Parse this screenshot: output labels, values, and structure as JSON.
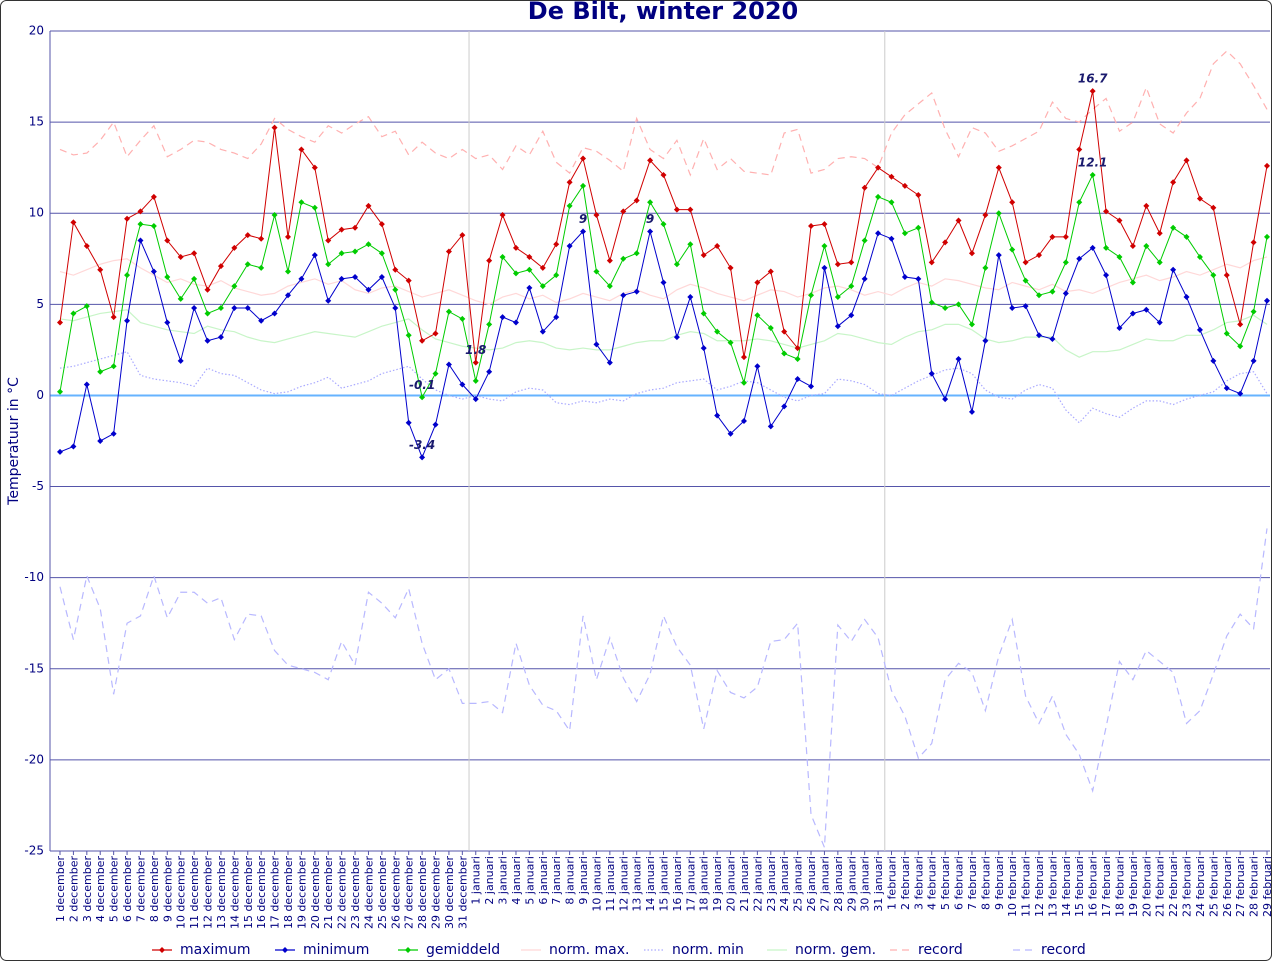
{
  "chart_data": {
    "type": "line",
    "title": "De Bilt, winter 2020",
    "y_label": "Temperatuur in °C",
    "categories": [
      "1 december",
      "2 december",
      "3 december",
      "4 december",
      "5 december",
      "6 december",
      "7 december",
      "8 december",
      "9 december",
      "10 december",
      "11 december",
      "12 december",
      "13 december",
      "14 december",
      "15 december",
      "16 december",
      "17 december",
      "18 december",
      "19 december",
      "20 december",
      "21 december",
      "22 december",
      "23 december",
      "24 december",
      "25 december",
      "26 december",
      "27 december",
      "28 december",
      "29 december",
      "30 december",
      "31 december",
      "1 januari",
      "2 januari",
      "3 januari",
      "4 januari",
      "5 januari",
      "6 januari",
      "7 januari",
      "8 januari",
      "9 januari",
      "10 januari",
      "11 januari",
      "12 januari",
      "13 januari",
      "14 januari",
      "15 januari",
      "16 januari",
      "17 januari",
      "18 januari",
      "19 januari",
      "20 januari",
      "21 januari",
      "22 januari",
      "23 januari",
      "24 januari",
      "25 januari",
      "26 januari",
      "27 januari",
      "28 januari",
      "29 januari",
      "30 januari",
      "31 januari",
      "1 februari",
      "2 februari",
      "3 februari",
      "4 februari",
      "5 februari",
      "6 februari",
      "7 februari",
      "8 februari",
      "9 februari",
      "10 februari",
      "11 februari",
      "12 februari",
      "13 februari",
      "14 februari",
      "15 februari",
      "16 februari",
      "17 februari",
      "18 februari",
      "19 februari",
      "20 februari",
      "21 februari",
      "22 februari",
      "23 februari",
      "24 februari",
      "25 februari",
      "26 februari",
      "27 februari",
      "28 februari",
      "29 februari"
    ],
    "ylim": [
      -25,
      20
    ],
    "yticks": [
      -25,
      -20,
      -15,
      -10,
      -5,
      0,
      5,
      10,
      15,
      20
    ],
    "grid": true,
    "legend": "bottom",
    "series": [
      {
        "name": "maximum",
        "color": "#d00000",
        "style": "solid",
        "markers": true,
        "values": [
          4.0,
          9.5,
          8.2,
          6.9,
          4.3,
          9.7,
          10.1,
          10.9,
          8.5,
          7.6,
          7.8,
          5.8,
          7.1,
          8.1,
          8.8,
          8.6,
          14.7,
          8.7,
          13.5,
          12.5,
          8.5,
          9.1,
          9.2,
          10.4,
          9.4,
          6.9,
          6.3,
          3.0,
          3.4,
          7.9,
          8.8,
          1.8,
          7.4,
          9.9,
          8.1,
          7.6,
          7.0,
          8.3,
          11.7,
          13.0,
          9.9,
          7.4,
          10.1,
          10.7,
          12.9,
          12.1,
          10.2,
          10.2,
          7.7,
          8.2,
          7.0,
          2.1,
          6.2,
          6.8,
          3.5,
          2.6,
          9.3,
          9.4,
          7.2,
          7.3,
          11.4,
          12.5,
          12.0,
          11.5,
          11.0,
          7.3,
          8.4,
          9.6,
          7.8,
          9.9,
          12.5,
          10.6,
          7.3,
          7.7,
          8.7,
          8.7,
          13.5,
          16.7,
          10.1,
          9.6,
          8.2,
          10.4,
          8.9,
          11.7,
          12.9,
          10.8,
          10.3,
          6.6,
          3.9,
          8.4,
          12.6
        ],
        "value_labels": [
          null,
          null,
          null,
          null,
          null,
          null,
          null,
          null,
          null,
          null,
          null,
          null,
          null,
          null,
          null,
          null,
          null,
          null,
          null,
          null,
          null,
          null,
          null,
          null,
          null,
          null,
          null,
          null,
          null,
          null,
          null,
          "1.8",
          null,
          null,
          null,
          null,
          null,
          null,
          null,
          null,
          null,
          null,
          null,
          null,
          null,
          null,
          null,
          null,
          null,
          null,
          null,
          null,
          null,
          null,
          null,
          null,
          null,
          null,
          null,
          null,
          null,
          null,
          null,
          null,
          null,
          null,
          null,
          null,
          null,
          null,
          null,
          null,
          null,
          null,
          null,
          null,
          null,
          "16.7",
          null,
          null,
          null,
          null,
          null,
          null,
          null,
          null,
          null,
          null,
          null,
          null,
          null
        ]
      },
      {
        "name": "minimum",
        "color": "#0000cc",
        "style": "solid",
        "markers": true,
        "values": [
          -3.1,
          -2.8,
          0.6,
          -2.5,
          -2.1,
          4.1,
          8.5,
          6.8,
          4.0,
          1.9,
          4.8,
          3.0,
          3.2,
          4.8,
          4.8,
          4.1,
          4.5,
          5.5,
          6.4,
          7.7,
          5.2,
          6.4,
          6.5,
          5.8,
          6.5,
          4.8,
          -1.5,
          -3.4,
          -1.6,
          1.7,
          0.6,
          -0.2,
          1.3,
          4.3,
          4.0,
          5.9,
          3.5,
          4.3,
          8.2,
          9,
          2.8,
          1.8,
          5.5,
          5.7,
          9,
          6.2,
          3.2,
          5.4,
          2.6,
          -1.1,
          -2.1,
          -1.4,
          1.6,
          -1.7,
          -0.6,
          0.9,
          0.5,
          7.0,
          3.8,
          4.4,
          6.4,
          8.9,
          8.6,
          6.5,
          6.4,
          1.2,
          -0.2,
          2.0,
          -0.9,
          3.0,
          7.7,
          4.8,
          4.9,
          3.3,
          3.1,
          5.6,
          7.5,
          8.1,
          6.6,
          3.7,
          4.5,
          4.7,
          4.0,
          6.9,
          5.4,
          3.6,
          1.9,
          0.4,
          0.1,
          1.9,
          5.2
        ],
        "value_labels": [
          null,
          null,
          null,
          null,
          null,
          null,
          null,
          null,
          null,
          null,
          null,
          null,
          null,
          null,
          null,
          null,
          null,
          null,
          null,
          null,
          null,
          null,
          null,
          null,
          null,
          null,
          null,
          "-3.4",
          null,
          null,
          null,
          null,
          null,
          null,
          null,
          null,
          null,
          null,
          null,
          "9",
          null,
          null,
          null,
          null,
          "9",
          null,
          null,
          null,
          null,
          null,
          null,
          null,
          null,
          null,
          null,
          null,
          null,
          null,
          null,
          null,
          null,
          null,
          null,
          null,
          null,
          null,
          null,
          null,
          null,
          null,
          null,
          null,
          null,
          null,
          null,
          null,
          null,
          null,
          null,
          null,
          null,
          null,
          null,
          null,
          null,
          null,
          null,
          null,
          null,
          null,
          null
        ]
      },
      {
        "name": "gemiddeld",
        "color": "#00cc00",
        "style": "solid",
        "markers": true,
        "values": [
          0.2,
          4.5,
          4.9,
          1.3,
          1.6,
          6.6,
          9.4,
          9.3,
          6.5,
          5.3,
          6.4,
          4.5,
          4.8,
          6.0,
          7.2,
          7.0,
          9.9,
          6.8,
          10.6,
          10.3,
          7.2,
          7.8,
          7.9,
          8.3,
          7.8,
          5.8,
          3.3,
          -0.1,
          1.2,
          4.6,
          4.2,
          0.8,
          3.9,
          7.6,
          6.7,
          6.9,
          6.0,
          6.6,
          10.4,
          11.5,
          6.8,
          6.0,
          7.5,
          7.8,
          10.6,
          9.4,
          7.2,
          8.3,
          4.5,
          3.5,
          2.9,
          0.7,
          4.4,
          3.7,
          2.3,
          2.0,
          5.5,
          8.2,
          5.4,
          6.0,
          8.5,
          10.9,
          10.6,
          8.9,
          9.2,
          5.1,
          4.8,
          5.0,
          3.9,
          7.0,
          10.0,
          8.0,
          6.3,
          5.5,
          5.7,
          7.3,
          10.6,
          12.1,
          8.1,
          7.6,
          6.2,
          8.2,
          7.3,
          9.2,
          8.7,
          7.6,
          6.6,
          3.4,
          2.7,
          4.6,
          8.7
        ],
        "value_labels": [
          null,
          null,
          null,
          null,
          null,
          null,
          null,
          null,
          null,
          null,
          null,
          null,
          null,
          null,
          null,
          null,
          null,
          null,
          null,
          null,
          null,
          null,
          null,
          null,
          null,
          null,
          null,
          "-0.1",
          null,
          null,
          null,
          null,
          null,
          null,
          null,
          null,
          null,
          null,
          null,
          null,
          null,
          null,
          null,
          null,
          null,
          null,
          null,
          null,
          null,
          null,
          null,
          null,
          null,
          null,
          null,
          null,
          null,
          null,
          null,
          null,
          null,
          null,
          null,
          null,
          null,
          null,
          null,
          null,
          null,
          null,
          null,
          null,
          null,
          null,
          null,
          null,
          null,
          "12.1",
          null,
          null,
          null,
          null,
          null,
          null,
          null,
          null,
          null,
          null,
          null,
          null,
          null
        ]
      },
      {
        "name": "norm. max.",
        "color": "#ffd8d8",
        "style": "solid",
        "markers": false,
        "values": [
          6.8,
          6.6,
          6.9,
          7.2,
          7.4,
          7.5,
          7.0,
          6.6,
          6.2,
          6.4,
          6.1,
          6.0,
          6.3,
          5.9,
          5.7,
          5.5,
          5.6,
          6.0,
          6.2,
          6.4,
          6.1,
          6.3,
          5.8,
          5.6,
          5.9,
          6.0,
          5.7,
          5.4,
          5.6,
          5.8,
          5.5,
          5.2,
          5.0,
          5.4,
          5.6,
          5.3,
          5.5,
          5.1,
          5.3,
          5.6,
          5.4,
          5.2,
          5.6,
          5.8,
          5.5,
          5.3,
          5.8,
          6.1,
          5.9,
          5.6,
          5.4,
          5.2,
          5.5,
          5.8,
          5.7,
          5.4,
          5.6,
          5.9,
          6.0,
          5.8,
          5.5,
          5.7,
          5.5,
          5.9,
          6.2,
          6.0,
          6.4,
          6.3,
          6.1,
          5.9,
          5.8,
          6.2,
          6.0,
          5.8,
          6.1,
          5.7,
          5.8,
          5.6,
          5.9,
          6.2,
          6.4,
          6.6,
          6.3,
          6.5,
          6.8,
          6.6,
          6.9,
          7.2,
          7.0,
          7.4,
          7.6
        ]
      },
      {
        "name": "norm. min",
        "color": "#aaaaff",
        "style": "dotted",
        "markers": false,
        "values": [
          1.5,
          1.6,
          1.8,
          2.0,
          2.2,
          2.4,
          1.1,
          0.9,
          0.8,
          0.7,
          0.5,
          1.5,
          1.2,
          1.1,
          0.7,
          0.3,
          0.1,
          0.2,
          0.5,
          0.7,
          1.0,
          0.4,
          0.6,
          0.8,
          1.2,
          1.4,
          1.6,
          0.9,
          0.3,
          0.0,
          -0.2,
          0.0,
          -0.2,
          -0.3,
          0.2,
          0.4,
          0.3,
          -0.4,
          -0.5,
          -0.3,
          -0.4,
          -0.2,
          -0.3,
          0.1,
          0.3,
          0.4,
          0.7,
          0.8,
          0.9,
          0.3,
          0.5,
          0.8,
          0.7,
          0.3,
          -0.1,
          -0.3,
          0.0,
          0.1,
          0.9,
          0.8,
          0.6,
          0.1,
          0.0,
          0.4,
          0.8,
          1.1,
          1.4,
          1.5,
          1.2,
          0.3,
          -0.1,
          -0.2,
          0.3,
          0.6,
          0.4,
          -0.8,
          -1.5,
          -0.7,
          -1.0,
          -1.2,
          -0.7,
          -0.3,
          -0.3,
          -0.5,
          -0.2,
          0.0,
          0.2,
          0.8,
          1.2,
          1.3,
          0.1
        ]
      },
      {
        "name": "norm. gem.",
        "color": "#c8f5c8",
        "style": "solid",
        "markers": false,
        "values": [
          4.2,
          4.1,
          4.3,
          4.5,
          4.6,
          4.7,
          4.0,
          3.8,
          3.6,
          3.5,
          3.4,
          3.8,
          3.6,
          3.5,
          3.2,
          3.0,
          2.9,
          3.1,
          3.3,
          3.5,
          3.4,
          3.3,
          3.2,
          3.5,
          3.8,
          4.0,
          4.2,
          3.6,
          3.1,
          2.9,
          2.7,
          2.6,
          2.5,
          2.6,
          2.9,
          3.0,
          2.9,
          2.6,
          2.5,
          2.6,
          2.5,
          2.5,
          2.7,
          2.9,
          3.0,
          3.0,
          3.3,
          3.5,
          3.4,
          3.0,
          3.0,
          3.0,
          3.1,
          3.0,
          2.8,
          2.6,
          2.8,
          3.0,
          3.4,
          3.3,
          3.1,
          2.9,
          2.8,
          3.2,
          3.5,
          3.6,
          3.9,
          3.9,
          3.6,
          3.1,
          2.9,
          3.0,
          3.2,
          3.2,
          3.2,
          2.5,
          2.1,
          2.4,
          2.4,
          2.5,
          2.8,
          3.1,
          3.0,
          3.0,
          3.3,
          3.3,
          3.6,
          4.0,
          4.1,
          4.4,
          3.9
        ]
      },
      {
        "name": "record",
        "color": "#ffb0b0",
        "style": "dashed",
        "markers": false,
        "values": [
          13.5,
          13.2,
          13.3,
          14.0,
          15.0,
          13.1,
          14.0,
          14.8,
          13.1,
          13.5,
          14.0,
          13.9,
          13.5,
          13.3,
          13.0,
          13.8,
          15.2,
          14.6,
          14.2,
          13.9,
          14.8,
          14.4,
          14.9,
          15.3,
          14.2,
          14.5,
          13.2,
          13.9,
          13.3,
          13.0,
          13.5,
          13.0,
          13.2,
          12.4,
          13.7,
          13.2,
          14.5,
          12.8,
          12.2,
          13.6,
          13.4,
          12.9,
          12.3,
          15.2,
          13.5,
          13.0,
          14.0,
          12.1,
          14.1,
          12.4,
          13.0,
          12.3,
          12.2,
          12.1,
          14.4,
          14.6,
          12.2,
          12.4,
          13.0,
          13.1,
          13.0,
          12.5,
          14.4,
          15.4,
          16.0,
          16.6,
          14.6,
          13.1,
          14.7,
          14.4,
          13.4,
          13.7,
          14.1,
          14.5,
          16.1,
          15.2,
          15.0,
          15.7,
          16.3,
          14.5,
          15.0,
          16.9,
          14.9,
          14.4,
          15.5,
          16.3,
          18.2,
          18.9,
          18.2,
          17.0,
          15.7
        ]
      },
      {
        "name": "record",
        "color": "#b8b8ff",
        "style": "dashed",
        "markers": false,
        "values": [
          -10.5,
          -13.4,
          -9.9,
          -11.7,
          -16.4,
          -12.5,
          -12.1,
          -9.9,
          -12.2,
          -10.8,
          -10.8,
          -11.4,
          -11.1,
          -13.4,
          -12.0,
          -12.1,
          -14.0,
          -14.8,
          -15.0,
          -15.2,
          -15.6,
          -13.5,
          -14.8,
          -10.8,
          -11.4,
          -12.2,
          -10.6,
          -13.6,
          -15.6,
          -15.0,
          -16.9,
          -16.9,
          -16.8,
          -17.4,
          -13.6,
          -15.9,
          -17.0,
          -17.3,
          -18.4,
          -12.1,
          -15.6,
          -13.3,
          -15.5,
          -16.8,
          -15.3,
          -12.1,
          -13.8,
          -14.8,
          -18.3,
          -15.1,
          -16.3,
          -16.6,
          -16.0,
          -13.5,
          -13.4,
          -12.5,
          -23.0,
          -24.8,
          -12.6,
          -13.5,
          -12.3,
          -13.3,
          -16.2,
          -17.6,
          -19.9,
          -19.1,
          -15.6,
          -14.7,
          -15.2,
          -17.3,
          -14.3,
          -12.3,
          -16.5,
          -18.0,
          -16.5,
          -18.6,
          -19.7,
          -21.7,
          -18.2,
          -14.6,
          -15.6,
          -14.0,
          -14.6,
          -15.2,
          -18.0,
          -17.3,
          -15.3,
          -13.2,
          -12.0,
          -12.8,
          -7.3
        ]
      }
    ]
  }
}
